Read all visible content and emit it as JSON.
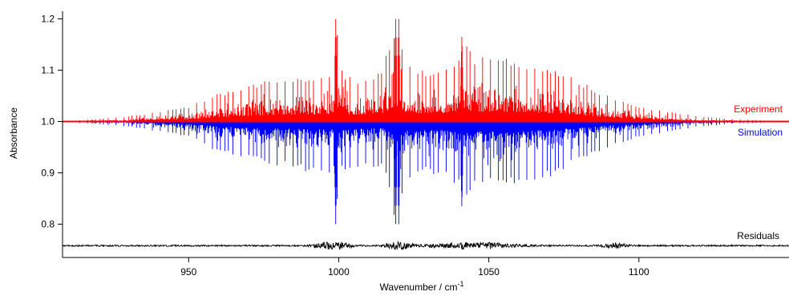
{
  "chart_data": {
    "type": "line",
    "title": "",
    "xlabel": "Wavenumber / cm",
    "xlabel_superscript": "-1",
    "ylabel": "Absorbance",
    "xlim": [
      908,
      1150
    ],
    "ylim": [
      0.735,
      1.215
    ],
    "x_ticks": [
      950,
      1000,
      1050,
      1100
    ],
    "y_ticks": [
      0.8,
      0.9,
      1.0,
      1.1,
      1.2
    ],
    "x_tick_labels": [
      "950",
      "1000",
      "1050",
      "1100"
    ],
    "y_tick_labels": [
      "0.8",
      "0.9",
      "1.0",
      "1.1",
      "1.2"
    ],
    "grid": false,
    "baseline": 1.0,
    "series": [
      {
        "name": "Experiment",
        "color": "#ff0000",
        "direction": "up",
        "envelope_x": [
          908,
          930,
          950,
          960,
          975,
          990,
          998,
          999,
          1001,
          1005,
          1010,
          1013,
          1015,
          1019,
          1020,
          1022,
          1030,
          1035,
          1040,
          1041,
          1045,
          1050,
          1060,
          1070,
          1080,
          1090,
          1100,
          1110,
          1120,
          1130,
          1150
        ],
        "envelope_y": [
          1.0,
          1.01,
          1.03,
          1.055,
          1.08,
          1.09,
          1.1,
          1.2,
          1.1,
          1.085,
          1.09,
          1.1,
          1.11,
          1.2,
          1.2,
          1.12,
          1.1,
          1.11,
          1.13,
          1.165,
          1.13,
          1.13,
          1.12,
          1.11,
          1.08,
          1.05,
          1.03,
          1.02,
          1.01,
          1.005,
          1.0
        ]
      },
      {
        "name": "Simulation",
        "color": "#0000ff",
        "direction": "down",
        "envelope_x": [
          908,
          930,
          950,
          960,
          975,
          990,
          998,
          999,
          1001,
          1005,
          1010,
          1013,
          1015,
          1019,
          1020,
          1022,
          1030,
          1035,
          1040,
          1041,
          1045,
          1050,
          1060,
          1070,
          1080,
          1090,
          1100,
          1110,
          1120,
          1130,
          1150
        ],
        "envelope_y": [
          1.0,
          0.99,
          0.97,
          0.94,
          0.92,
          0.9,
          0.9,
          0.8,
          0.9,
          0.91,
          0.91,
          0.91,
          0.92,
          0.8,
          0.8,
          0.88,
          0.9,
          0.89,
          0.87,
          0.835,
          0.87,
          0.87,
          0.88,
          0.89,
          0.92,
          0.95,
          0.97,
          0.98,
          0.99,
          0.995,
          1.0
        ]
      },
      {
        "name": "Residuals",
        "color": "#000000",
        "offset": 0.758,
        "noise_amplitude": 0.003,
        "burst_x": [
          995,
          1000,
          1020,
          1045,
          1092
        ],
        "burst_amplitude": [
          0.008,
          0.012,
          0.014,
          0.012,
          0.008
        ]
      }
    ]
  }
}
